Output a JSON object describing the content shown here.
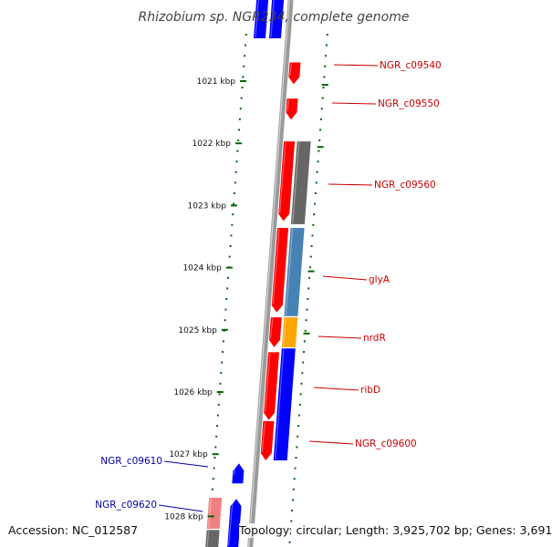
{
  "title": "Rhizobium sp. NGR234, complete genome",
  "ticks": [
    {
      "label": "1021 kbp",
      "kbp": 1021
    },
    {
      "label": "1022 kbp",
      "kbp": 1022
    },
    {
      "label": "1023 kbp",
      "kbp": 1023
    },
    {
      "label": "1024 kbp",
      "kbp": 1024
    },
    {
      "label": "1025 kbp",
      "kbp": 1025
    },
    {
      "label": "1026 kbp",
      "kbp": 1026
    },
    {
      "label": "1027 kbp",
      "kbp": 1027
    },
    {
      "label": "1028 kbp",
      "kbp": 1028
    }
  ],
  "forward_genes": [
    {
      "name": "NGR_c09540",
      "start_kbp": 1020.7,
      "end_kbp": 1021.05
    },
    {
      "name": "NGR_c09550",
      "start_kbp": 1021.28,
      "end_kbp": 1021.62
    },
    {
      "name": "NGR_c09560",
      "start_kbp": 1021.97,
      "end_kbp": 1023.25
    },
    {
      "name": "glyA",
      "start_kbp": 1023.36,
      "end_kbp": 1024.72
    },
    {
      "name": "nrdR",
      "start_kbp": 1024.8,
      "end_kbp": 1025.28
    },
    {
      "name": "ribD",
      "start_kbp": 1025.36,
      "end_kbp": 1026.45
    },
    {
      "name": "NGR_c09600",
      "start_kbp": 1026.47,
      "end_kbp": 1027.1
    }
  ],
  "reverse_genes": [
    {
      "name": "NGR_c09610",
      "start_kbp": 1027.15,
      "end_kbp": 1027.47
    },
    {
      "name": "NGR_c09620",
      "start_kbp": 1027.72,
      "end_kbp": 1028.6
    }
  ],
  "labels": [
    {
      "text": "NGR_c09540",
      "strand": "forward"
    },
    {
      "text": "NGR_c09550",
      "strand": "forward"
    },
    {
      "text": "NGR_c09560",
      "strand": "forward"
    },
    {
      "text": "glyA",
      "strand": "forward"
    },
    {
      "text": "nrdR",
      "strand": "forward"
    },
    {
      "text": "ribD",
      "strand": "forward"
    },
    {
      "text": "NGR_c09600",
      "strand": "forward"
    },
    {
      "text": "NGR_c09610",
      "strand": "reverse"
    },
    {
      "text": "NGR_c09620",
      "strand": "reverse"
    }
  ],
  "colors": {
    "cds": "#ff0000",
    "reverse_cds": "#0000ff",
    "blast_grey": "#666666",
    "blast_steel": "#4682b4",
    "blast_orange": "#ffa500",
    "blast_pink": "#f08080",
    "backbone": "#9a9a9a",
    "tick": "#006400",
    "forward_label": "#cc0000",
    "reverse_label": "#0000aa"
  },
  "footer": {
    "accession": "Accession: NC_012587",
    "stats": "Topology: circular; Length: 3,925,702 bp; Genes: 3,691"
  }
}
